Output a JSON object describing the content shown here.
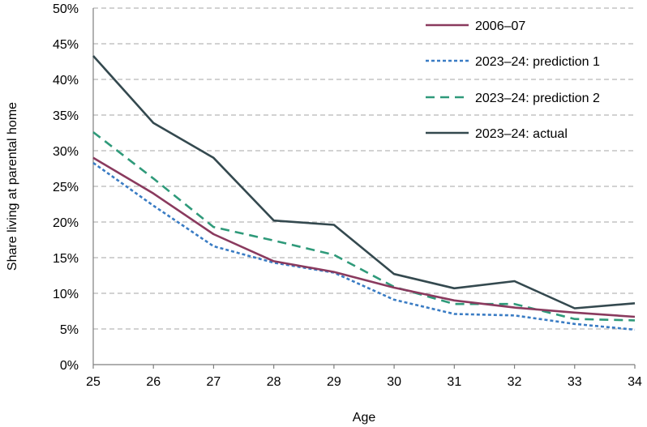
{
  "chart_data": {
    "type": "line",
    "xlabel": "Age",
    "ylabel": "Share living at parental home",
    "x": [
      25,
      26,
      27,
      28,
      29,
      30,
      31,
      32,
      33,
      34
    ],
    "xlim": [
      25,
      34
    ],
    "ylim": [
      0,
      50
    ],
    "y_ticks": [
      "0%",
      "5%",
      "10%",
      "15%",
      "20%",
      "25%",
      "30%",
      "35%",
      "40%",
      "45%",
      "50%"
    ],
    "x_ticks": [
      "25",
      "26",
      "27",
      "28",
      "29",
      "30",
      "31",
      "32",
      "33",
      "34"
    ],
    "grid": "horizontal dashed",
    "legend_position": "top-right",
    "series": [
      {
        "name": "2006–07",
        "color": "#8a3a5e",
        "style": "solid",
        "values": [
          29.0,
          24.0,
          18.3,
          14.5,
          13.0,
          10.8,
          9.0,
          8.0,
          7.3,
          6.7
        ]
      },
      {
        "name": "2023–24: prediction 1",
        "color": "#3a7cc4",
        "style": "dotted",
        "values": [
          28.3,
          22.3,
          16.6,
          14.3,
          12.9,
          9.1,
          7.1,
          6.9,
          5.7,
          4.9
        ]
      },
      {
        "name": "2023–24: prediction 2",
        "color": "#2f9a7a",
        "style": "dashed",
        "values": [
          32.6,
          26.1,
          19.3,
          17.4,
          15.4,
          10.9,
          8.5,
          8.5,
          6.4,
          6.2
        ]
      },
      {
        "name": "2023–24: actual",
        "color": "#34494f",
        "style": "solid",
        "values": [
          43.3,
          33.9,
          29.0,
          20.2,
          19.6,
          12.7,
          10.7,
          11.7,
          7.9,
          8.6
        ]
      }
    ]
  }
}
